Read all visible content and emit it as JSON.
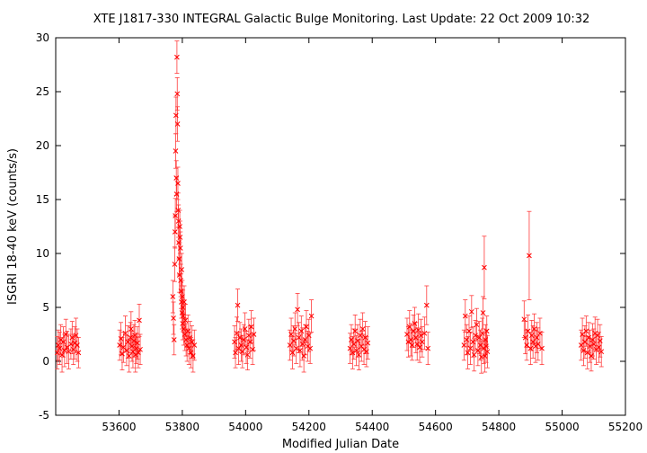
{
  "chart_data": {
    "type": "scatter",
    "title": "XTE J1817-330   INTEGRAL Galactic Bulge Monitoring.  Last Update: 22 Oct 2009 10:32",
    "xlabel": "Modified Julian Date",
    "ylabel": "ISGRI 18-40 keV (counts/s)",
    "xlim": [
      53400,
      55200
    ],
    "ylim": [
      -5,
      30
    ],
    "xticks": [
      "53600",
      "53800",
      "54000",
      "54200",
      "54400",
      "54600",
      "54800",
      "55000",
      "55200"
    ],
    "xtick_values": [
      53600,
      53800,
      54000,
      54200,
      54400,
      54600,
      54800,
      55000,
      55200
    ],
    "yticks": [
      "-5",
      "0",
      "5",
      "10",
      "15",
      "20",
      "25",
      "30"
    ],
    "ytick_values": [
      -5,
      0,
      5,
      10,
      15,
      20,
      25,
      30
    ],
    "grid": false,
    "marker_color": "#ff0000",
    "errorbar_color": "#ff3b3b",
    "series": [
      {
        "points": [
          [
            53405,
            0.8,
            1.5
          ],
          [
            53408,
            1.5,
            1.4
          ],
          [
            53412,
            1.2,
            1.5
          ],
          [
            53416,
            2.0,
            1.4
          ],
          [
            53420,
            0.6,
            1.6
          ],
          [
            53424,
            1.8,
            1.4
          ],
          [
            53428,
            1.0,
            1.5
          ],
          [
            53432,
            2.5,
            1.4
          ],
          [
            53436,
            1.3,
            1.5
          ],
          [
            53441,
            0.9,
            1.6
          ],
          [
            53448,
            1.6,
            1.4
          ],
          [
            53452,
            2.2,
            1.5
          ],
          [
            53456,
            1.1,
            1.4
          ],
          [
            53460,
            1.7,
            1.5
          ],
          [
            53464,
            2.4,
            1.6
          ],
          [
            53468,
            1.5,
            1.5
          ],
          [
            53472,
            0.8,
            1.4
          ],
          [
            53602,
            1.5,
            1.4
          ],
          [
            53606,
            2.1,
            1.5
          ],
          [
            53610,
            0.7,
            1.5
          ],
          [
            53614,
            1.3,
            1.4
          ],
          [
            53620,
            2.6,
            1.6
          ],
          [
            53624,
            1.0,
            1.4
          ],
          [
            53628,
            1.8,
            1.5
          ],
          [
            53632,
            0.5,
            1.5
          ],
          [
            53636,
            2.2,
            1.4
          ],
          [
            53638,
            3.0,
            1.6
          ],
          [
            53641,
            1.4,
            1.4
          ],
          [
            53644,
            0.9,
            1.5
          ],
          [
            53647,
            1.9,
            1.5
          ],
          [
            53650,
            2.4,
            1.4
          ],
          [
            53652,
            0.6,
            1.6
          ],
          [
            53655,
            1.2,
            1.4
          ],
          [
            53658,
            1.7,
            1.5
          ],
          [
            53661,
            0.8,
            1.4
          ],
          [
            53664,
            3.8,
            1.5
          ],
          [
            53667,
            1.1,
            1.4
          ],
          [
            53770,
            6.0,
            1.5
          ],
          [
            53772,
            4.0,
            1.5
          ],
          [
            53774,
            2.0,
            1.4
          ],
          [
            53776,
            9.0,
            1.6
          ],
          [
            53777,
            12.0,
            1.5
          ],
          [
            53778,
            13.5,
            1.6
          ],
          [
            53779,
            19.5,
            1.6
          ],
          [
            53780,
            22.8,
            1.7
          ],
          [
            53781,
            17.0,
            1.6
          ],
          [
            53782,
            15.5,
            1.6
          ],
          [
            53783,
            28.2,
            1.5
          ],
          [
            53784,
            24.8,
            1.5
          ],
          [
            53785,
            22.0,
            1.6
          ],
          [
            53786,
            16.5,
            1.5
          ],
          [
            53787,
            14.0,
            1.6
          ],
          [
            53788,
            13.0,
            1.5
          ],
          [
            53789,
            11.0,
            1.5
          ],
          [
            53790,
            9.5,
            1.5
          ],
          [
            53791,
            8.0,
            1.6
          ],
          [
            53792,
            12.5,
            1.5
          ],
          [
            53793,
            11.5,
            1.5
          ],
          [
            53794,
            10.5,
            1.5
          ],
          [
            53795,
            7.5,
            1.5
          ],
          [
            53796,
            6.5,
            1.6
          ],
          [
            53797,
            5.5,
            1.5
          ],
          [
            53798,
            8.5,
            1.5
          ],
          [
            53799,
            4.5,
            1.5
          ],
          [
            53800,
            6.0,
            1.5
          ],
          [
            53801,
            3.5,
            1.5
          ],
          [
            53802,
            5.0,
            1.6
          ],
          [
            53803,
            4.2,
            1.5
          ],
          [
            53804,
            3.0,
            1.5
          ],
          [
            53806,
            5.5,
            1.5
          ],
          [
            53808,
            2.5,
            1.5
          ],
          [
            53810,
            3.8,
            1.5
          ],
          [
            53812,
            2.0,
            1.5
          ],
          [
            53815,
            1.5,
            1.5
          ],
          [
            53818,
            2.8,
            1.5
          ],
          [
            53821,
            1.2,
            1.5
          ],
          [
            53824,
            2.2,
            1.5
          ],
          [
            53827,
            0.8,
            1.4
          ],
          [
            53830,
            1.8,
            1.5
          ],
          [
            53834,
            0.5,
            1.5
          ],
          [
            53838,
            1.5,
            1.4
          ],
          [
            53965,
            1.8,
            1.5
          ],
          [
            53968,
            0.8,
            1.4
          ],
          [
            53972,
            2.6,
            1.5
          ],
          [
            53975,
            5.2,
            1.5
          ],
          [
            53978,
            1.2,
            1.5
          ],
          [
            53982,
            2.2,
            1.4
          ],
          [
            53986,
            1.5,
            1.5
          ],
          [
            53990,
            0.9,
            1.5
          ],
          [
            53994,
            2.0,
            1.4
          ],
          [
            53998,
            3.0,
            1.5
          ],
          [
            54002,
            1.3,
            1.5
          ],
          [
            54006,
            0.6,
            1.4
          ],
          [
            54010,
            2.4,
            1.5
          ],
          [
            54014,
            1.8,
            1.5
          ],
          [
            54018,
            3.2,
            1.5
          ],
          [
            54022,
            1.1,
            1.4
          ],
          [
            54026,
            2.5,
            1.5
          ],
          [
            54140,
            1.5,
            1.4
          ],
          [
            54144,
            2.5,
            1.5
          ],
          [
            54148,
            0.8,
            1.5
          ],
          [
            54152,
            1.9,
            1.4
          ],
          [
            54156,
            3.0,
            1.5
          ],
          [
            54160,
            1.2,
            1.4
          ],
          [
            54164,
            4.8,
            1.5
          ],
          [
            54168,
            2.2,
            1.4
          ],
          [
            54172,
            1.0,
            1.5
          ],
          [
            54176,
            2.8,
            1.4
          ],
          [
            54180,
            1.6,
            1.5
          ],
          [
            54184,
            0.5,
            1.5
          ],
          [
            54188,
            2.0,
            1.4
          ],
          [
            54192,
            3.2,
            1.5
          ],
          [
            54196,
            1.4,
            1.4
          ],
          [
            54200,
            2.4,
            1.5
          ],
          [
            54204,
            1.2,
            1.4
          ],
          [
            54208,
            4.2,
            1.5
          ],
          [
            54330,
            1.2,
            1.4
          ],
          [
            54334,
            2.0,
            1.4
          ],
          [
            54338,
            0.8,
            1.5
          ],
          [
            54342,
            1.6,
            1.4
          ],
          [
            54346,
            2.8,
            1.5
          ],
          [
            54350,
            1.0,
            1.4
          ],
          [
            54354,
            1.9,
            1.5
          ],
          [
            54358,
            0.6,
            1.4
          ],
          [
            54362,
            2.4,
            1.5
          ],
          [
            54366,
            1.4,
            1.4
          ],
          [
            54370,
            3.0,
            1.5
          ],
          [
            54374,
            1.1,
            1.4
          ],
          [
            54378,
            2.2,
            1.5
          ],
          [
            54382,
            0.9,
            1.4
          ],
          [
            54386,
            1.7,
            1.5
          ],
          [
            54510,
            2.5,
            1.5
          ],
          [
            54514,
            1.8,
            1.4
          ],
          [
            54518,
            3.2,
            1.5
          ],
          [
            54522,
            2.0,
            1.5
          ],
          [
            54526,
            1.5,
            1.4
          ],
          [
            54530,
            2.8,
            1.5
          ],
          [
            54534,
            3.5,
            1.5
          ],
          [
            54538,
            2.2,
            1.4
          ],
          [
            54542,
            1.6,
            1.5
          ],
          [
            54546,
            2.9,
            1.5
          ],
          [
            54550,
            1.3,
            1.4
          ],
          [
            54554,
            2.4,
            1.5
          ],
          [
            54558,
            1.8,
            1.4
          ],
          [
            54565,
            2.6,
            1.5
          ],
          [
            54572,
            5.2,
            1.8
          ],
          [
            54576,
            1.2,
            1.5
          ],
          [
            54690,
            1.5,
            1.4
          ],
          [
            54694,
            4.2,
            1.5
          ],
          [
            54698,
            2.0,
            1.4
          ],
          [
            54702,
            0.8,
            1.5
          ],
          [
            54706,
            2.8,
            1.4
          ],
          [
            54710,
            1.2,
            1.5
          ],
          [
            54714,
            4.6,
            1.5
          ],
          [
            54718,
            1.8,
            1.4
          ],
          [
            54722,
            0.6,
            1.5
          ],
          [
            54726,
            2.4,
            1.4
          ],
          [
            54730,
            3.4,
            1.5
          ],
          [
            54734,
            1.0,
            1.4
          ],
          [
            54738,
            2.2,
            1.5
          ],
          [
            54742,
            1.5,
            1.4
          ],
          [
            54745,
            0.4,
            1.5
          ],
          [
            54748,
            2.6,
            1.4
          ],
          [
            54750,
            4.5,
            1.5
          ],
          [
            54752,
            1.2,
            1.4
          ],
          [
            54754,
            8.7,
            2.9
          ],
          [
            54756,
            0.5,
            1.5
          ],
          [
            54758,
            2.0,
            1.4
          ],
          [
            54760,
            1.4,
            1.5
          ],
          [
            54762,
            2.8,
            1.4
          ],
          [
            54764,
            0.9,
            1.5
          ],
          [
            54880,
            3.9,
            1.7
          ],
          [
            54884,
            2.2,
            1.5
          ],
          [
            54888,
            1.5,
            1.4
          ],
          [
            54892,
            2.8,
            1.5
          ],
          [
            54896,
            9.8,
            4.1
          ],
          [
            54900,
            1.2,
            1.5
          ],
          [
            54904,
            2.4,
            1.4
          ],
          [
            54908,
            1.8,
            1.5
          ],
          [
            54912,
            3.0,
            1.4
          ],
          [
            54916,
            1.4,
            1.5
          ],
          [
            54920,
            2.2,
            1.4
          ],
          [
            54924,
            1.6,
            1.5
          ],
          [
            54930,
            2.6,
            1.4
          ],
          [
            54936,
            1.2,
            1.5
          ],
          [
            55060,
            1.5,
            1.4
          ],
          [
            55064,
            2.5,
            1.5
          ],
          [
            55068,
            1.0,
            1.4
          ],
          [
            55072,
            1.8,
            1.5
          ],
          [
            55076,
            2.8,
            1.4
          ],
          [
            55080,
            0.8,
            1.5
          ],
          [
            55084,
            2.2,
            1.4
          ],
          [
            55088,
            1.4,
            1.5
          ],
          [
            55092,
            0.5,
            1.4
          ],
          [
            55096,
            2.0,
            1.5
          ],
          [
            55100,
            1.6,
            1.4
          ],
          [
            55104,
            2.6,
            1.5
          ],
          [
            55108,
            1.1,
            1.4
          ],
          [
            55112,
            2.4,
            1.5
          ],
          [
            55116,
            1.3,
            1.4
          ],
          [
            55120,
            1.9,
            1.5
          ],
          [
            55124,
            0.9,
            1.4
          ]
        ]
      }
    ]
  }
}
